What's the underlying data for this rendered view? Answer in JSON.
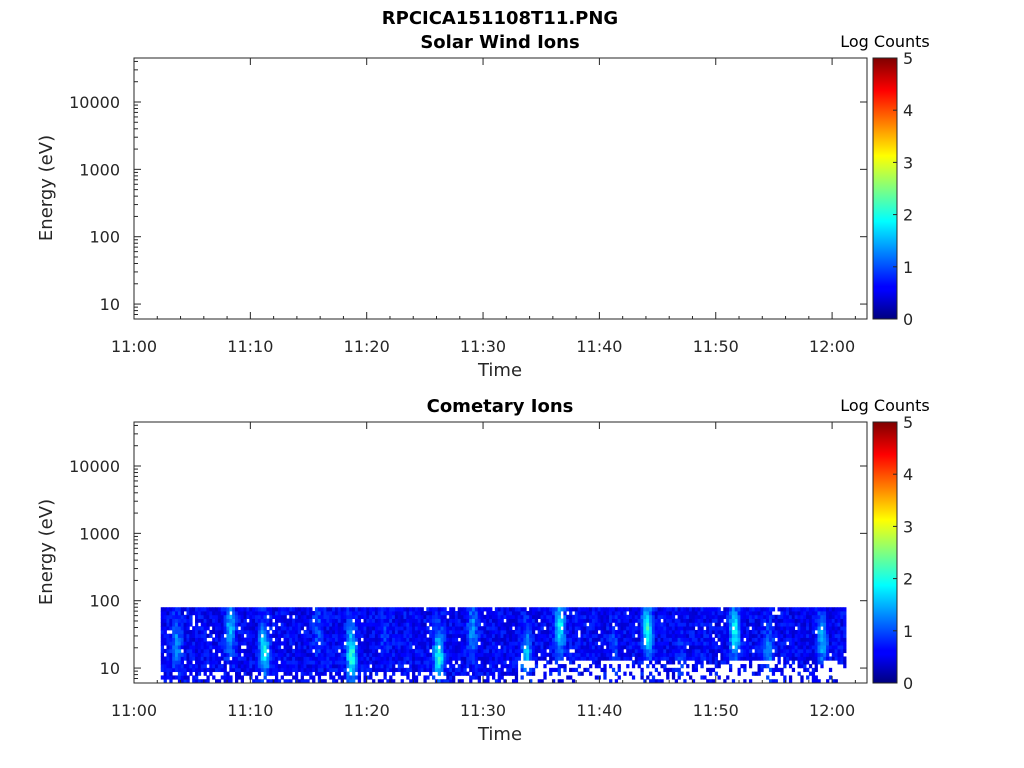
{
  "figure_title": "RPCICA151108T11.PNG",
  "chart_data": [
    {
      "type": "heatmap",
      "title": "Solar Wind Ions",
      "xlabel": "Time",
      "ylabel": "Energy (eV)",
      "x_ticks": [
        "11:00",
        "11:10",
        "11:20",
        "11:30",
        "11:40",
        "11:50",
        "12:00"
      ],
      "xlim_minutes": [
        0,
        63
      ],
      "y_scale": "log",
      "y_ticks": [
        "10",
        "100",
        "1000",
        "10000"
      ],
      "ylim": [
        6,
        45000
      ],
      "colorbar": {
        "label": "Log Counts",
        "ticks": [
          "0",
          "1",
          "2",
          "3",
          "4",
          "5"
        ],
        "range": [
          0,
          5
        ],
        "colormap": "jet"
      },
      "data_present": false
    },
    {
      "type": "heatmap",
      "title": "Cometary Ions",
      "xlabel": "Time",
      "ylabel": "Energy (eV)",
      "x_ticks": [
        "11:00",
        "11:10",
        "11:20",
        "11:30",
        "11:40",
        "11:50",
        "12:00"
      ],
      "xlim_minutes": [
        0,
        63
      ],
      "y_scale": "log",
      "y_ticks": [
        "10",
        "100",
        "1000",
        "10000"
      ],
      "ylim": [
        6,
        45000
      ],
      "colorbar": {
        "label": "Log Counts",
        "ticks": [
          "0",
          "1",
          "2",
          "3",
          "4",
          "5"
        ],
        "range": [
          0,
          5
        ],
        "colormap": "jet"
      },
      "data_present": true,
      "data_time_range_minutes": [
        2.3,
        61.2
      ],
      "data_energy_range_eV": [
        6,
        80
      ],
      "typical_log_counts_range": [
        0,
        2.2
      ]
    }
  ]
}
